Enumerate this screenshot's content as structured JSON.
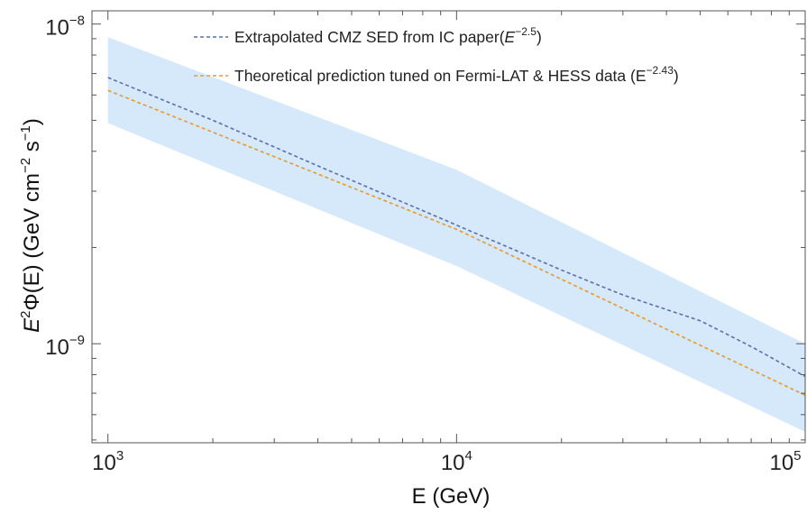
{
  "chart_data": {
    "type": "line",
    "x_scale": "log",
    "y_scale": "log",
    "xlim": [
      900,
      100000
    ],
    "ylim": [
      4.9e-10,
      1.1e-08
    ],
    "x_ticks": [
      {
        "value": 1000,
        "base": "10",
        "exp": "3"
      },
      {
        "value": 10000,
        "base": "10",
        "exp": "4"
      },
      {
        "value": 100000,
        "base": "10",
        "exp": "5"
      }
    ],
    "y_ticks": [
      {
        "value": 1e-09,
        "base": "10",
        "exp": "−9"
      },
      {
        "value": 1e-08,
        "base": "10",
        "exp": "−8"
      }
    ],
    "xlabel": "E (GeV)",
    "ylabel": {
      "e": "E",
      "e_exp": "2",
      "phi": "Φ(E) (GeV cm",
      "cm_exp": "−2",
      "s": " s",
      "s_exp": "−1",
      "close": ")"
    },
    "band": {
      "color": "#d6e9fb",
      "x": [
        1000,
        10000,
        100000
      ],
      "upper": [
        9.1e-09,
        3.5e-09,
        1e-09
      ],
      "lower": [
        4.9e-09,
        1.75e-09,
        5.3e-10
      ]
    },
    "series": [
      {
        "name": "Extrapolated CMZ SED from IC paper",
        "name_suffix": "(",
        "name_exp_base": "E",
        "name_exp": "−2.5",
        "name_close": ")",
        "color": "#5b6fa8",
        "style": "dashed",
        "x": [
          1000,
          2000,
          4000,
          10000,
          20000,
          30000,
          50000,
          70000,
          100000
        ],
        "y": [
          6.8e-09,
          5e-09,
          3.6e-09,
          2.35e-09,
          1.7e-09,
          1.42e-09,
          1.18e-09,
          9.8e-10,
          7.9e-10
        ]
      },
      {
        "name": "Theoretical prediction tuned on Fermi-LAT & HESS data (E",
        "name_suffix": "",
        "name_exp_base": "",
        "name_exp": "−2.43",
        "name_close": ")",
        "color": "#e59a2f",
        "style": "dashed",
        "x": [
          1000,
          10000,
          100000
        ],
        "y": [
          6.2e-09,
          2.28e-09,
          6.9e-10
        ]
      }
    ],
    "grid": false,
    "legend_position": "top"
  }
}
